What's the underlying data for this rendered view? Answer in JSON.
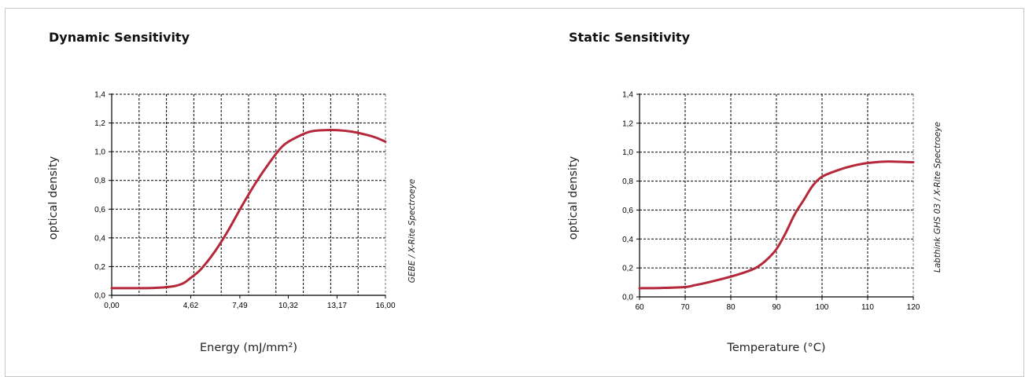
{
  "chart_data": [
    {
      "type": "line",
      "title": "Dynamic Sensitivity",
      "xlabel": "Energy (mJ/mm²)",
      "ylabel": "optical density",
      "side_note": "GEBE / X-Rite Spectroeye",
      "xlim": [
        0,
        16
      ],
      "ylim": [
        0,
        1.4
      ],
      "x_ticks": [
        0,
        4.62,
        7.49,
        10.32,
        13.17,
        16
      ],
      "x_tick_labels": [
        "0,00",
        "4,62",
        "7,49",
        "10,32",
        "13,17",
        "16,00"
      ],
      "x_gridlines": [
        0,
        1.6,
        3.2,
        4.8,
        6.4,
        8.0,
        9.6,
        11.2,
        12.8,
        14.4,
        16.0
      ],
      "y_ticks": [
        0,
        0.2,
        0.4,
        0.6,
        0.8,
        1.0,
        1.2,
        1.4
      ],
      "y_tick_labels": [
        "0,0",
        "0,2",
        "0,4",
        "0,6",
        "0,8",
        "1,0",
        "1,2",
        "1,4"
      ],
      "grid": true,
      "series": [
        {
          "color": "#b5283a",
          "x": [
            0,
            1.0,
            2.0,
            3.0,
            3.7,
            4.2,
            4.6,
            5.2,
            6.0,
            6.8,
            7.6,
            8.4,
            9.2,
            10.0,
            10.8,
            11.6,
            12.4,
            13.2,
            14.0,
            14.8,
            15.4,
            16.0
          ],
          "y": [
            0.05,
            0.05,
            0.05,
            0.055,
            0.065,
            0.085,
            0.12,
            0.18,
            0.3,
            0.45,
            0.62,
            0.78,
            0.92,
            1.04,
            1.1,
            1.14,
            1.15,
            1.15,
            1.14,
            1.12,
            1.1,
            1.07
          ]
        }
      ]
    },
    {
      "type": "line",
      "title": "Static Sensitivity",
      "xlabel": "Temperature (°C)",
      "ylabel": "optical density",
      "side_note": "Labthink GHS 03 / X-Rite Spectroeye",
      "xlim": [
        60,
        120
      ],
      "ylim": [
        0,
        1.4
      ],
      "x_ticks": [
        60,
        70,
        80,
        90,
        100,
        110,
        120
      ],
      "x_tick_labels": [
        "60",
        "70",
        "80",
        "90",
        "100",
        "110",
        "120"
      ],
      "x_gridlines": [
        60,
        70,
        80,
        90,
        100,
        110,
        120
      ],
      "y_ticks": [
        0,
        0.2,
        0.4,
        0.6,
        0.8,
        1.0,
        1.2,
        1.4
      ],
      "y_tick_labels": [
        "0,0",
        "0,2",
        "0,4",
        "0,6",
        "0,8",
        "1,0",
        "1,2",
        "1,4"
      ],
      "grid": true,
      "series": [
        {
          "color": "#b5283a",
          "x": [
            60,
            65,
            70,
            72,
            75,
            80,
            84,
            86,
            88,
            90,
            92,
            94,
            96,
            98,
            100,
            103,
            106,
            110,
            114,
            117,
            120
          ],
          "y": [
            0.06,
            0.062,
            0.068,
            0.08,
            0.1,
            0.14,
            0.18,
            0.21,
            0.26,
            0.33,
            0.44,
            0.57,
            0.67,
            0.77,
            0.83,
            0.87,
            0.9,
            0.925,
            0.935,
            0.933,
            0.93
          ]
        }
      ]
    }
  ]
}
